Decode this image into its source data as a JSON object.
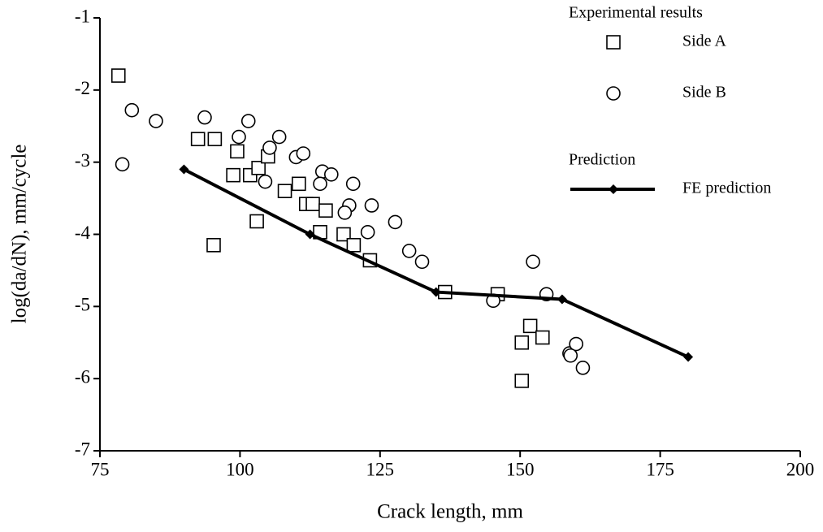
{
  "chart_data": {
    "type": "scatter",
    "x_label": "Crack length, mm",
    "y_label": "log(da/dN), mm/cycle",
    "legend_headings": [
      "Experimental results",
      "Prediction"
    ],
    "xlim": [
      75,
      200
    ],
    "xticks": [
      75,
      100,
      125,
      150,
      175,
      200
    ],
    "ylim": [
      -7,
      -1
    ],
    "yticks": [
      -1,
      -2,
      -3,
      -4,
      -5,
      -6,
      -7
    ],
    "series": [
      {
        "name": "Side A",
        "marker": "square",
        "color": "#000000",
        "x": [
          78.3,
          92.5,
          95.5,
          99.5,
          98.8,
          101.8,
          103.3,
          105,
          103,
          95.3,
          108,
          110.5,
          111.8,
          113,
          115.3,
          114.3,
          118.5,
          120.3,
          123.2,
          136.6,
          146,
          151.8,
          154,
          150.3,
          150.3
        ],
        "values": [
          -1.8,
          -2.68,
          -2.68,
          -2.85,
          -3.18,
          -3.18,
          -3.08,
          -2.92,
          -3.82,
          -4.15,
          -3.4,
          -3.3,
          -3.58,
          -3.58,
          -3.67,
          -3.97,
          -4.0,
          -4.15,
          -4.36,
          -4.8,
          -4.83,
          -5.27,
          -5.43,
          -5.5,
          -6.03
        ]
      },
      {
        "name": "Side B",
        "marker": "circle",
        "color": "#000000",
        "x": [
          79,
          80.7,
          85,
          93.7,
          99.8,
          101.5,
          104.5,
          105.3,
          107,
          110,
          111.3,
          114.7,
          114.3,
          116.3,
          120.2,
          119.5,
          118.7,
          123.5,
          122.8,
          127.7,
          130.2,
          132.5,
          145.2,
          152.3,
          154.7,
          158.8,
          160,
          161.2,
          159
        ],
        "values": [
          -3.03,
          -2.28,
          -2.43,
          -2.38,
          -2.65,
          -2.43,
          -3.27,
          -2.8,
          -2.65,
          -2.93,
          -2.88,
          -3.13,
          -3.3,
          -3.17,
          -3.3,
          -3.6,
          -3.7,
          -3.6,
          -3.97,
          -3.83,
          -4.23,
          -4.38,
          -4.92,
          -4.38,
          -4.83,
          -5.65,
          -5.52,
          -5.85,
          -5.68
        ]
      },
      {
        "name": "FE prediction",
        "marker": "line",
        "color": "#000000",
        "x": [
          90,
          112.5,
          135,
          157.5,
          180
        ],
        "values": [
          -3.1,
          -4.0,
          -4.8,
          -4.9,
          -5.7
        ]
      }
    ]
  }
}
